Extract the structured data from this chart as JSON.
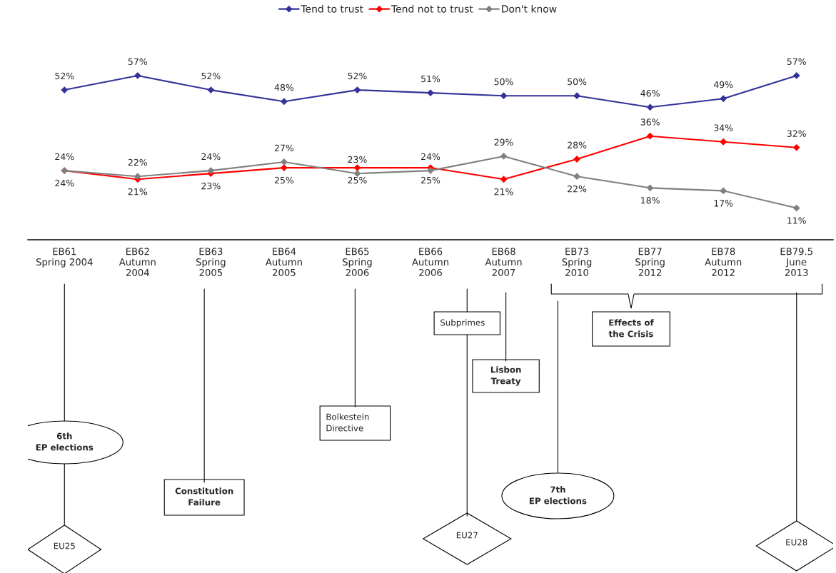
{
  "chart_data": {
    "type": "line",
    "categories": [
      "EB61\nSpring 2004",
      "EB62\nAutumn\n2004",
      "EB63\nSpring\n2005",
      "EB64\nAutumn\n2005",
      "EB65\nSpring\n2006",
      "EB66\nAutumn\n2006",
      "EB68\nAutumn\n2007",
      "EB73\nSpring\n2010",
      "EB77\nSpring\n2012",
      "EB78\nAutumn\n2012",
      "EB79.5\nJune\n2013"
    ],
    "series": [
      {
        "name": "Tend to trust",
        "color": "#333399",
        "values": [
          52,
          57,
          52,
          48,
          52,
          51,
          50,
          50,
          46,
          49,
          57
        ],
        "value_labels": [
          "52%",
          "57%",
          "52%",
          "48%",
          "52%",
          "51%",
          "50%",
          "50%",
          "46%",
          "49%",
          "57%"
        ]
      },
      {
        "name": "Tend not to trust",
        "color": "#ff0000",
        "values": [
          24,
          21,
          23,
          25,
          25,
          25,
          21,
          28,
          36,
          34,
          32
        ],
        "value_labels": [
          "24%",
          "21%",
          "23%",
          "25%",
          "25%",
          "25%",
          "21%",
          "28%",
          "36%",
          "34%",
          "32%"
        ]
      },
      {
        "name": "Don't know",
        "color": "#808080",
        "values": [
          24,
          22,
          24,
          27,
          23,
          24,
          29,
          22,
          18,
          17,
          11
        ],
        "value_labels": [
          "24%",
          "22%",
          "24%",
          "27%",
          "23%",
          "24%",
          "29%",
          "22%",
          "18%",
          "17%",
          "11%"
        ]
      }
    ],
    "marker": "diamond",
    "line_style": "solid",
    "legend": "top",
    "grid": false,
    "annotations": [
      "6th\nEP elections",
      "EU25",
      "Constitution\nFailure",
      "Bolkestein\nDirective",
      "Subprimes",
      "EU27",
      "Lisbon\nTreaty",
      "Effects of\nthe Crisis",
      "7th\nEP elections",
      "EU28"
    ]
  }
}
